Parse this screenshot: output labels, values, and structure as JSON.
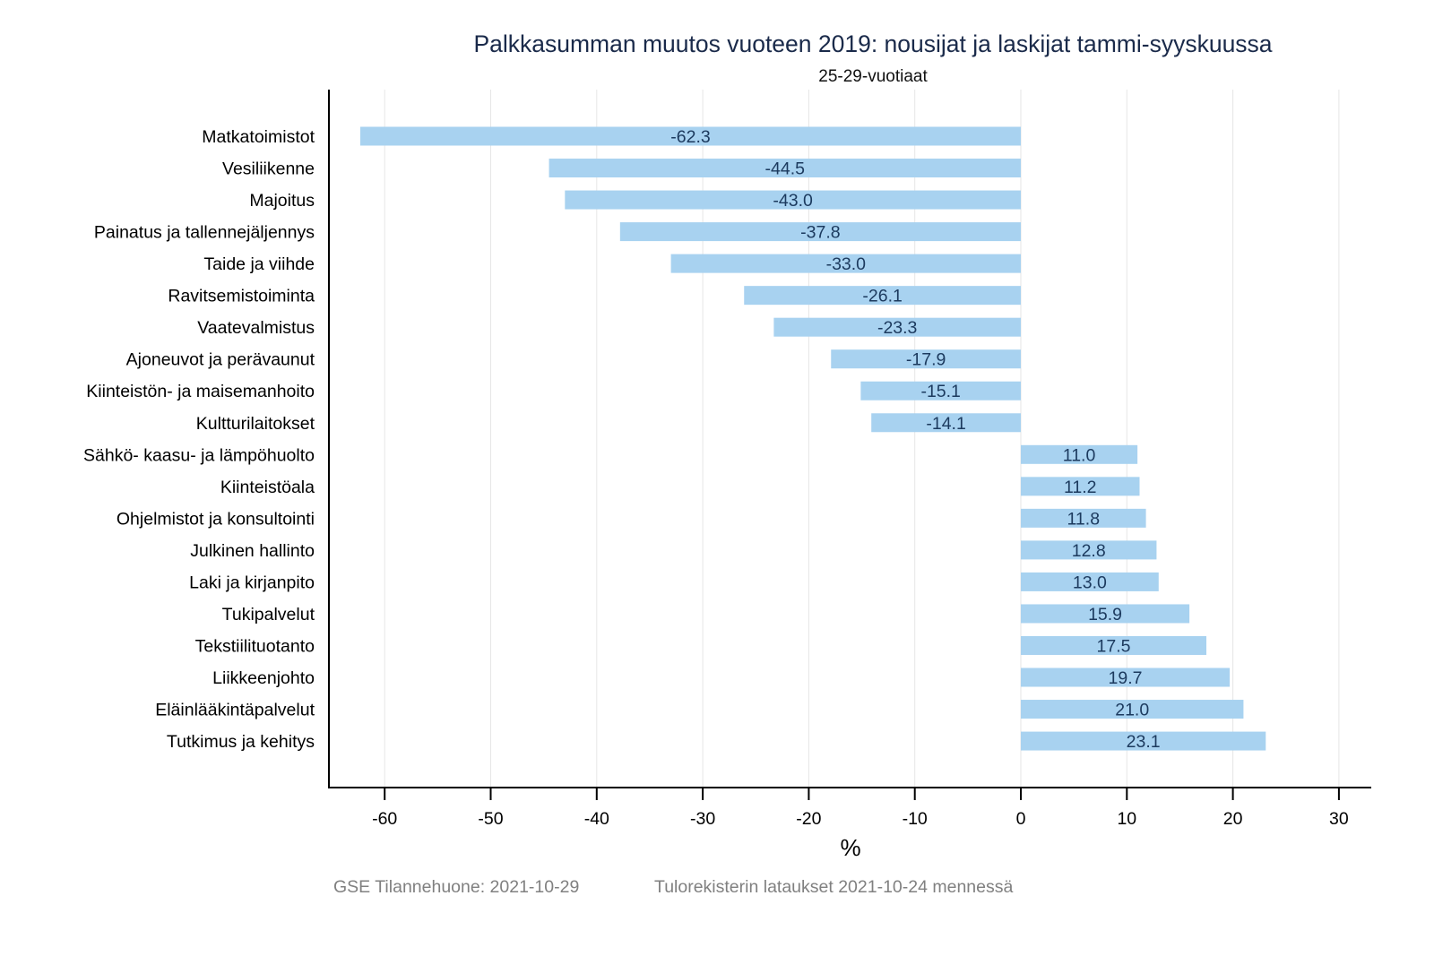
{
  "chart_data": {
    "type": "bar",
    "orientation": "horizontal",
    "title": "Palkkasumman muutos vuoteen 2019: nousijat ja laskijat tammi-syyskuussa",
    "subtitle": "25-29-vuotiaat",
    "xlabel": "%",
    "ylabel": "",
    "xlim": [
      -65,
      33
    ],
    "xticks": [
      -60,
      -50,
      -40,
      -30,
      -20,
      -10,
      0,
      10,
      20,
      30
    ],
    "xtick_labels": [
      "-60",
      "-50",
      "-40",
      "-30",
      "-20",
      "-10",
      "0",
      "10",
      "20",
      "30"
    ],
    "grid": "vertical",
    "bar_color": "#a8d2f0",
    "label_color": "#1c3a5e",
    "categories": [
      "Matkatoimistot",
      "Vesiliikenne",
      "Majoitus",
      "Painatus ja tallennejäljennys",
      "Taide ja viihde",
      "Ravitsemistoiminta",
      "Vaatevalmistus",
      "Ajoneuvot ja perävaunut",
      "Kiinteistön- ja maisemanhoito",
      "Kultturilaitokset",
      "Sähkö- kaasu- ja lämpöhuolto",
      "Kiinteistöala",
      "Ohjelmistot ja konsultointi",
      "Julkinen hallinto",
      "Laki ja kirjanpito",
      "Tukipalvelut",
      "Tekstiilituotanto",
      "Liikkeenjohto",
      "Eläinlääkintäpalvelut",
      "Tutkimus ja kehitys"
    ],
    "values": [
      -62.3,
      -44.5,
      -43.0,
      -37.8,
      -33.0,
      -26.1,
      -23.3,
      -17.9,
      -15.1,
      -14.1,
      11.0,
      11.2,
      11.8,
      12.8,
      13.0,
      15.9,
      17.5,
      19.7,
      21.0,
      23.1
    ],
    "data_labels": [
      "-62.3",
      "-44.5",
      "-43.0",
      "-37.8",
      "-33.0",
      "-26.1",
      "-23.3",
      "-17.9",
      "-15.1",
      "-14.1",
      "11.0",
      "11.2",
      "11.8",
      "12.8",
      "13.0",
      "15.9",
      "17.5",
      "19.7",
      "21.0",
      "23.1"
    ]
  },
  "footer": {
    "source": "GSE Tilannehuone: 2021-10-29",
    "note": "Tulorekisterin lataukset 2021-10-24 mennessä"
  }
}
